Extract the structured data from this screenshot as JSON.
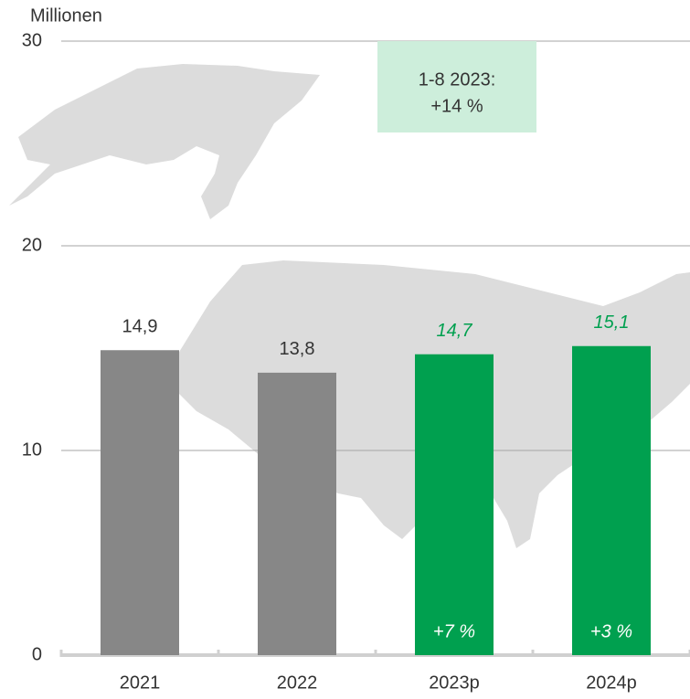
{
  "chart_data": {
    "type": "bar",
    "y_axis_label": "Millionen",
    "categories": [
      "2021",
      "2022",
      "2023p",
      "2024p"
    ],
    "values": [
      14.9,
      13.8,
      14.7,
      15.1
    ],
    "value_labels": [
      "14,9",
      "13,8",
      "14,7",
      "15,1"
    ],
    "colors": [
      "#878787",
      "#878787",
      "#00a04f",
      "#00a04f"
    ],
    "value_label_colors": [
      "#333333",
      "#333333",
      "#00a04f",
      "#00a04f"
    ],
    "value_label_italic": [
      false,
      false,
      true,
      true
    ],
    "growth_labels": [
      null,
      null,
      "+7 %",
      "+3 %"
    ],
    "annotation": {
      "lines": [
        "1-8 2023:",
        "+14 %"
      ],
      "color": "#cdeedb"
    },
    "ylim": [
      0,
      30
    ],
    "yticks": [
      0,
      10,
      20,
      30
    ],
    "grid": true
  }
}
